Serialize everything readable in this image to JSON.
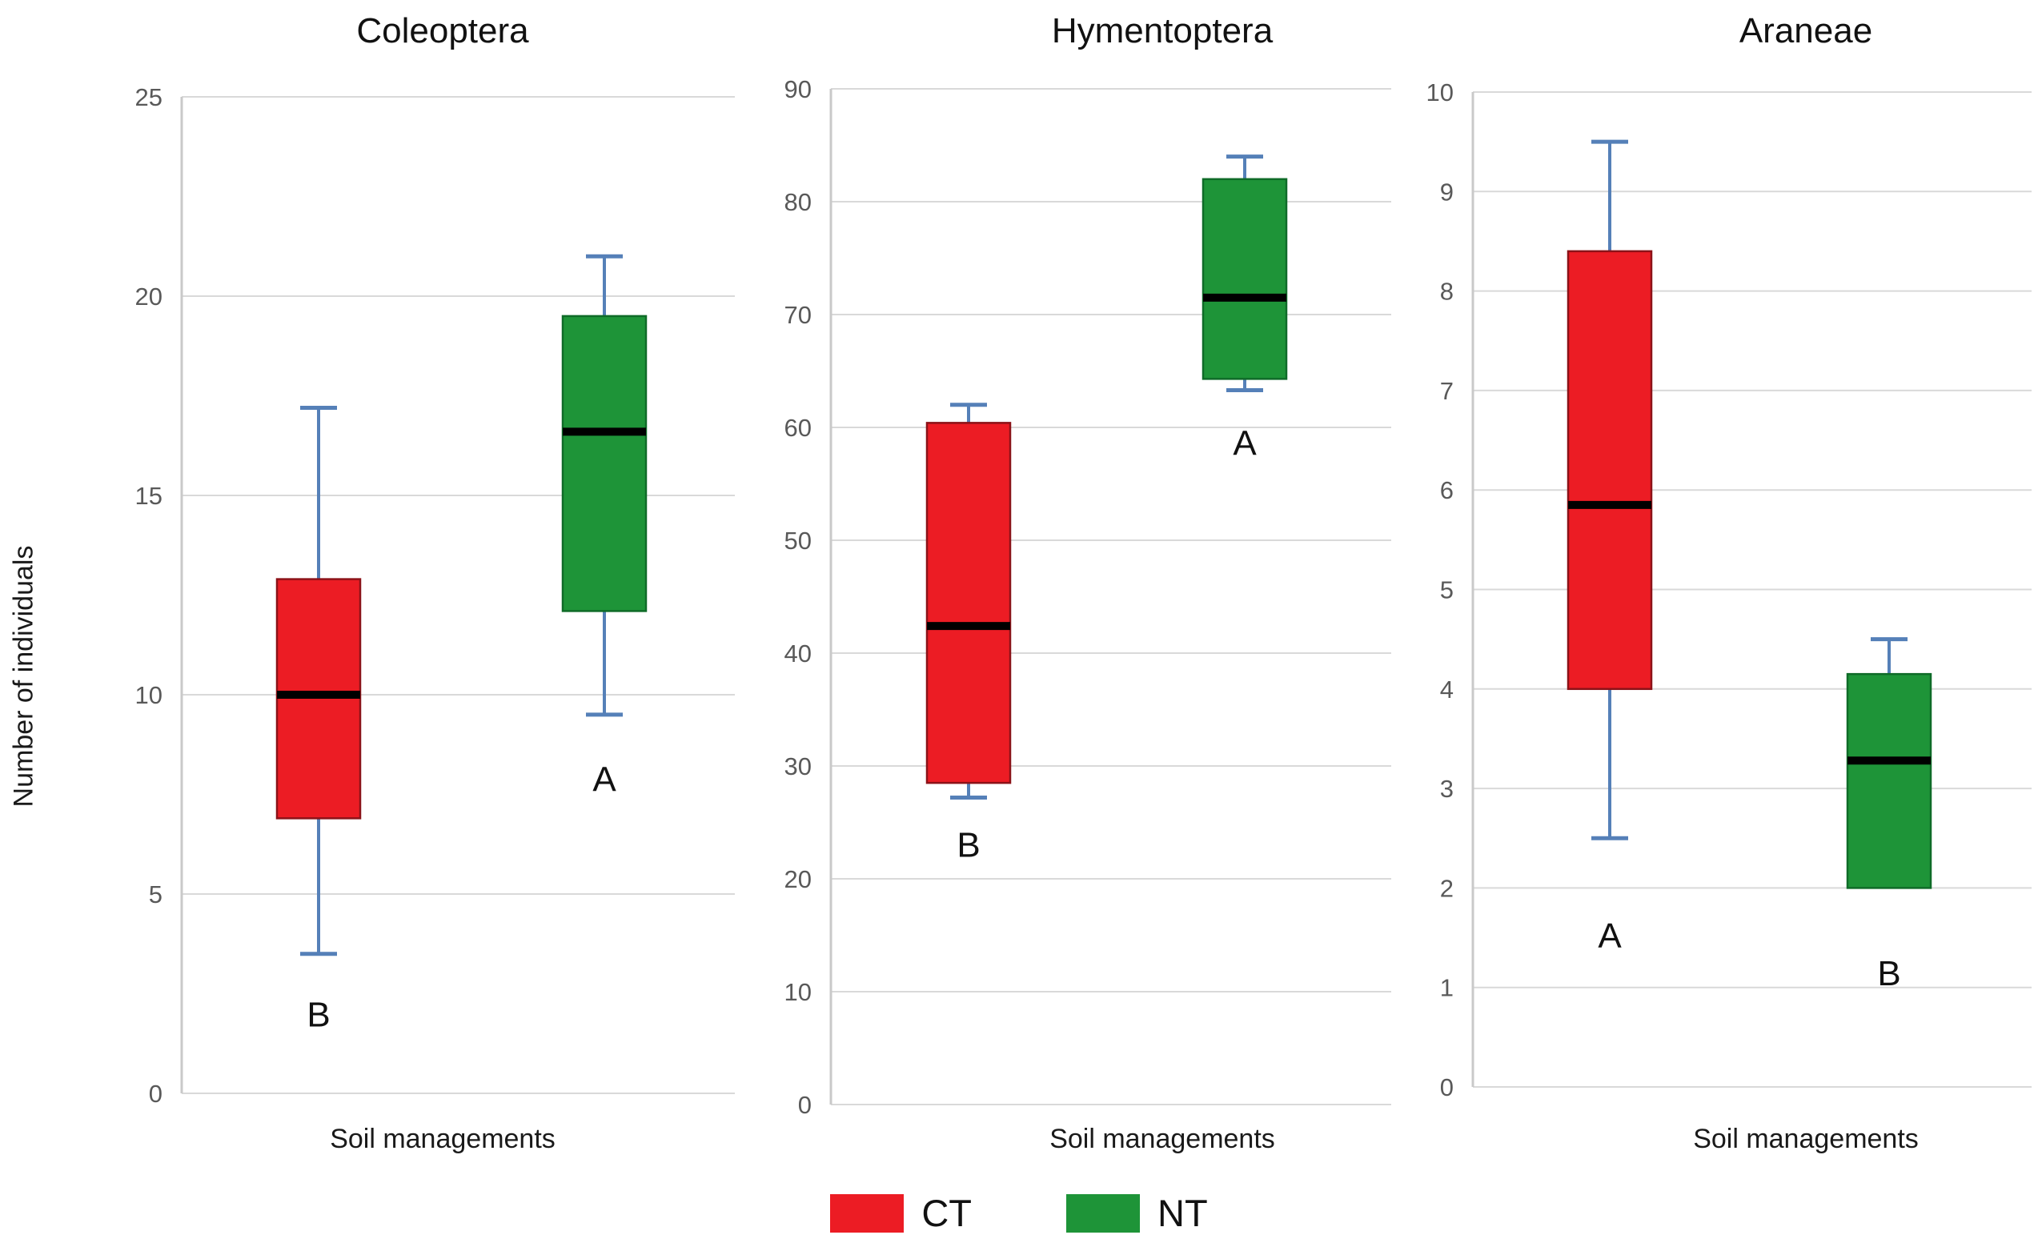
{
  "figure": {
    "y_axis_title": "Number of individuals",
    "background": "#FFFFFF"
  },
  "legend": {
    "position": "bottom",
    "items": [
      {
        "label": "CT",
        "color": "#EC1C24"
      },
      {
        "label": "NT",
        "color": "#1E9438"
      }
    ]
  },
  "styles": {
    "ct_fill": "#EC1C24",
    "ct_border": "#8C1218",
    "nt_fill": "#1E9438",
    "nt_border": "#0F6B28",
    "whisker": "#5580B8",
    "median": "#000000",
    "gridline": "#D9D9D9",
    "axis_line": "#C9C9C9",
    "tick_text": "#595959",
    "title_text": "#111111",
    "sig_text": "#111111"
  },
  "chart_data": [
    {
      "type": "box",
      "title": "Coleoptera",
      "xlabel": "Soil managements",
      "ylabel": "Number of individuals",
      "ylim": [
        0,
        25
      ],
      "ystep": 5,
      "yticks": [
        0,
        5,
        10,
        15,
        20,
        25
      ],
      "grid": true,
      "categories": [
        "CT",
        "NT"
      ],
      "series": [
        {
          "name": "CT",
          "significance": "B",
          "sig_y": 2.0,
          "whisker_low": 3.5,
          "q1": 6.9,
          "median": 10.0,
          "q3": 12.9,
          "whisker_high": 17.2
        },
        {
          "name": "NT",
          "significance": "A",
          "sig_y": 7.9,
          "whisker_low": 9.5,
          "q1": 12.1,
          "median": 16.6,
          "q3": 19.5,
          "whisker_high": 21.0
        }
      ]
    },
    {
      "type": "box",
      "title": "Hymentoptera",
      "xlabel": "Soil managements",
      "ylabel": "Number of individuals",
      "ylim": [
        0,
        90
      ],
      "ystep": 10,
      "yticks": [
        0,
        10,
        20,
        30,
        40,
        50,
        60,
        70,
        80,
        90
      ],
      "grid": true,
      "categories": [
        "CT",
        "NT"
      ],
      "series": [
        {
          "name": "CT",
          "significance": "B",
          "sig_y": 23.1,
          "whisker_low": 27.2,
          "q1": 28.5,
          "median": 42.4,
          "q3": 60.4,
          "whisker_high": 62.0
        },
        {
          "name": "NT",
          "significance": "A",
          "sig_y": 58.7,
          "whisker_low": 63.3,
          "q1": 64.3,
          "median": 71.5,
          "q3": 82.0,
          "whisker_high": 84.0
        }
      ]
    },
    {
      "type": "box",
      "title": "Araneae",
      "xlabel": "Soil managements",
      "ylabel": "Number of individuals",
      "ylim": [
        0,
        10
      ],
      "ystep": 1,
      "yticks": [
        0,
        1,
        2,
        3,
        4,
        5,
        6,
        7,
        8,
        9,
        10
      ],
      "grid": true,
      "categories": [
        "CT",
        "NT"
      ],
      "series": [
        {
          "name": "CT",
          "significance": "A",
          "sig_y": 1.53,
          "whisker_low": 2.5,
          "q1": 4.0,
          "median": 5.85,
          "q3": 8.4,
          "whisker_high": 9.5
        },
        {
          "name": "NT",
          "significance": "B",
          "sig_y": 1.15,
          "whisker_low": 2.0,
          "q1": 2.0,
          "median": 3.28,
          "q3": 4.15,
          "whisker_high": 4.5
        }
      ]
    }
  ]
}
